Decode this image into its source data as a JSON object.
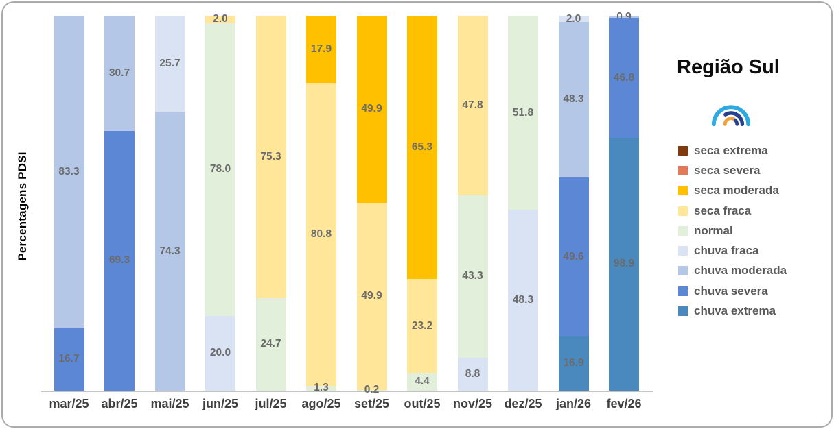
{
  "chart_data": {
    "type": "bar",
    "variant": "stacked-100-percent",
    "title": "Região Sul",
    "ylabel": "Percentagens PDSI",
    "xlabel": "",
    "legend_position": "right",
    "grid": false,
    "categories": [
      "mar/25",
      "abr/25",
      "mai/25",
      "jun/25",
      "jul/25",
      "ago/25",
      "set/25",
      "out/25",
      "nov/25",
      "dez/25",
      "jan/26",
      "fev/26"
    ],
    "series": [
      {
        "name": "seca extrema",
        "color": "#7F3A0E",
        "values": [
          0,
          0,
          0,
          0,
          0,
          0,
          0,
          0,
          0,
          0,
          0,
          0
        ]
      },
      {
        "name": "seca severa",
        "color": "#E07B5A",
        "values": [
          0,
          0,
          0,
          0,
          0,
          0,
          0,
          0,
          0,
          0,
          0,
          0
        ]
      },
      {
        "name": "seca moderada",
        "color": "#FFC000",
        "values": [
          0,
          0,
          0,
          0,
          0,
          17.9,
          49.9,
          65.3,
          0,
          0,
          0,
          0
        ]
      },
      {
        "name": "seca fraca",
        "color": "#FFE699",
        "values": [
          0,
          0,
          0,
          2.0,
          75.3,
          80.8,
          49.9,
          23.2,
          47.8,
          0,
          0,
          0
        ]
      },
      {
        "name": "normal",
        "color": "#E2EFDA",
        "values": [
          0,
          0,
          0,
          78.0,
          24.7,
          1.3,
          0.2,
          4.4,
          43.3,
          51.8,
          0,
          0
        ]
      },
      {
        "name": "chuva fraca",
        "color": "#DAE3F3",
        "values": [
          0,
          0,
          25.7,
          20.0,
          0,
          0,
          0,
          0,
          8.8,
          48.3,
          2.0,
          0
        ]
      },
      {
        "name": "chuva moderada",
        "color": "#B4C7E7",
        "values": [
          83.3,
          30.7,
          74.3,
          0,
          0,
          0,
          0,
          0,
          0,
          0,
          48.3,
          0.9
        ]
      },
      {
        "name": "chuva severa",
        "color": "#5B87D5",
        "values": [
          16.7,
          69.3,
          0,
          0,
          0,
          0,
          0,
          0,
          0,
          0,
          49.6,
          46.8
        ]
      },
      {
        "name": "chuva extrema",
        "color": "#4A89BE",
        "values": [
          0,
          0,
          0,
          0,
          0,
          0,
          0,
          0,
          0,
          0,
          16.9,
          98.9
        ]
      }
    ],
    "data_label_color": "#6B6B6B",
    "axis_line_color": "#C4C4C4"
  },
  "logo": {
    "name": "rainbow-logo",
    "colors": {
      "light_blue": "#2FA9E1",
      "navy": "#27408E",
      "orange": "#F0A23C"
    }
  }
}
